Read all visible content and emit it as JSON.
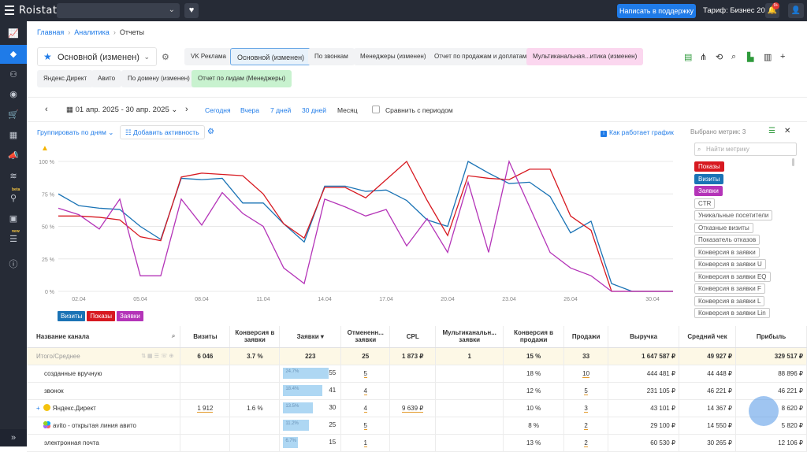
{
  "topbar": {
    "logo": "Roistat",
    "support_button": "Написать в поддержку",
    "tariff": "Тариф: Бизнес 20",
    "notification_count": "9+"
  },
  "sidebar": {
    "beta_tag": "beta",
    "new_tag": "new",
    "icons": [
      "chart-line-icon",
      "layers-icon",
      "sitemap-icon",
      "user-circle-icon",
      "cart-icon",
      "calendar-icon",
      "megaphone-icon",
      "stack-icon",
      "analytics-beta-icon",
      "inbox-icon",
      "list-new-icon",
      "info-icon"
    ],
    "collapse_icon": "double-chevron-right-icon"
  },
  "breadcrumb": {
    "home": "Главная",
    "analytics": "Аналитика",
    "current": "Отчеты"
  },
  "report": {
    "title": "Основной (изменен)",
    "tabs": [
      {
        "label": "VK Реклама",
        "style": "plain"
      },
      {
        "label": "Основной (изменен)",
        "style": "selected"
      },
      {
        "label": "По звонкам",
        "style": "plain"
      },
      {
        "label": "Менеджеры (изменен)",
        "style": "plain"
      },
      {
        "label": "Отчет по продажам и доплатам",
        "style": "plain"
      },
      {
        "label": "Мультиканальная...итика (изменен)",
        "style": "pink"
      }
    ],
    "tabs_row2": [
      {
        "label": "Яндекс.Директ",
        "style": "plain"
      },
      {
        "label": "Авито",
        "style": "plain"
      },
      {
        "label": "По домену (изменен)",
        "style": "plain"
      },
      {
        "label": "Отчет по лидам (Менеджеры)",
        "style": "green"
      }
    ]
  },
  "datebar": {
    "range": "01 апр. 2025 - 30 апр. 2025",
    "today": "Сегодня",
    "yesterday": "Вчера",
    "days7": "7 дней",
    "days30": "30 дней",
    "month": "Месяц",
    "compare": "Сравнить с периодом"
  },
  "chart_controls": {
    "group_by": "Группировать по дням",
    "add_activity": "Добавить активность",
    "how_it_works": "Как работает график"
  },
  "metrics_panel": {
    "selected": "Выбрано метрик: 3",
    "search_placeholder": "Найти метрику",
    "items": [
      {
        "label": "Показы",
        "on": true,
        "color": "#d71920"
      },
      {
        "label": "Визиты",
        "on": true,
        "color": "#1a73b5"
      },
      {
        "label": "Заявки",
        "on": true,
        "color": "#b434b8"
      },
      {
        "label": "CTR",
        "on": false
      },
      {
        "label": "Уникальные посетители",
        "on": false
      },
      {
        "label": "Отказные визиты",
        "on": false
      },
      {
        "label": "Показатель отказов",
        "on": false
      },
      {
        "label": "Конверсия в заявки",
        "on": false
      },
      {
        "label": "Конверсия в заявки U",
        "on": false
      },
      {
        "label": "Конверсия в заявки EQ",
        "on": false
      },
      {
        "label": "Конверсия в заявки F",
        "on": false
      },
      {
        "label": "Конверсия в заявки L",
        "on": false
      },
      {
        "label": "Конверсия в заявки Lin",
        "on": false
      }
    ]
  },
  "chart_data": {
    "type": "line",
    "x": [
      "01.04",
      "02.04",
      "03.04",
      "04.04",
      "05.04",
      "06.04",
      "07.04",
      "08.04",
      "09.04",
      "10.04",
      "11.04",
      "12.04",
      "13.04",
      "14.04",
      "15.04",
      "16.04",
      "17.04",
      "18.04",
      "19.04",
      "20.04",
      "21.04",
      "22.04",
      "23.04",
      "24.04",
      "25.04",
      "26.04",
      "27.04",
      "28.04",
      "29.04",
      "30.04",
      "01.05"
    ],
    "xticks": [
      "02.04",
      "05.04",
      "08.04",
      "11.04",
      "14.04",
      "17.04",
      "20.04",
      "23.04",
      "26.04",
      "30.04"
    ],
    "yticks": [
      "0 %",
      "25 %",
      "50 %",
      "75 %",
      "100 %"
    ],
    "ylim": [
      0,
      100
    ],
    "grid": true,
    "series": [
      {
        "name": "Визиты",
        "color": "#1a73b5",
        "values": [
          75,
          66,
          64,
          63,
          50,
          40,
          87,
          86,
          87,
          68,
          68,
          52,
          38,
          81,
          81,
          77,
          78,
          70,
          55,
          50,
          100,
          91,
          83,
          84,
          73,
          45,
          54,
          6,
          0,
          0,
          0
        ]
      },
      {
        "name": "Показы",
        "color": "#d71920",
        "values": [
          58,
          58,
          57,
          55,
          42,
          39,
          88,
          91,
          90,
          89,
          75,
          52,
          41,
          80,
          80,
          72,
          86,
          100,
          70,
          43,
          89,
          87,
          86,
          94,
          94,
          58,
          47,
          0,
          0,
          0,
          0
        ]
      },
      {
        "name": "Заявки",
        "color": "#b434b8",
        "values": [
          64,
          59,
          48,
          71,
          12,
          12,
          71,
          51,
          76,
          60,
          50,
          18,
          6,
          71,
          65,
          58,
          63,
          35,
          56,
          30,
          84,
          30,
          100,
          65,
          30,
          18,
          12,
          0,
          0,
          0,
          0
        ]
      }
    ]
  },
  "legend": {
    "visits": "Визиты",
    "shows": "Показы",
    "leads": "Заявки"
  },
  "table": {
    "headers": [
      "Название канала",
      "Визиты",
      "Конверсия в заявки",
      "Заявки ▾",
      "Отмененн... заявки",
      "CPL",
      "Мультиканальн... заявки",
      "Конверсия в продажи",
      "Продажи",
      "Выручка",
      "Средний чек",
      "Прибыль"
    ],
    "total": {
      "name": "Итого/Среднее",
      "visits": "6 046",
      "conv": "3.7 %",
      "leads": "223",
      "cancelled": "25",
      "cpl": "1 873 ₽",
      "multi": "1",
      "conv_sales": "15 %",
      "sales": "33",
      "revenue": "1 647 587 ₽",
      "avg": "49 927 ₽",
      "profit": "329 517 ₽"
    },
    "rows": [
      {
        "name": "созданные вручную",
        "visits": "",
        "conv": "",
        "lead_pct": "24.7%",
        "lead_fill": 0.84,
        "leads": "55",
        "cancelled": "5",
        "cpl": "",
        "multi": "",
        "conv_sales": "18 %",
        "sales": "10",
        "revenue": "444 481 ₽",
        "avg": "44 448 ₽",
        "profit": "88 896 ₽"
      },
      {
        "name": "звонок",
        "visits": "",
        "conv": "",
        "lead_pct": "18.4%",
        "lead_fill": 0.72,
        "leads": "41",
        "cancelled": "4",
        "cpl": "",
        "multi": "",
        "conv_sales": "12 %",
        "sales": "5",
        "revenue": "231 105 ₽",
        "avg": "46 221 ₽",
        "profit": "46 221 ₽"
      },
      {
        "name": "Яндекс.Директ",
        "visits": "1 912",
        "conv": "1.6 %",
        "lead_pct": "13.5%",
        "lead_fill": 0.54,
        "leads": "30",
        "cancelled": "4",
        "cpl": "9 639 ₽",
        "multi": "",
        "conv_sales": "10 %",
        "sales": "3",
        "revenue": "43 101 ₽",
        "avg": "14 367 ₽",
        "profit": "8 620 ₽"
      },
      {
        "name": "avito - открытая линия авито",
        "visits": "",
        "conv": "",
        "lead_pct": "11.2%",
        "lead_fill": 0.48,
        "leads": "25",
        "cancelled": "5",
        "cpl": "",
        "multi": "",
        "conv_sales": "8 %",
        "sales": "2",
        "revenue": "29 100 ₽",
        "avg": "14 550 ₽",
        "profit": "5 820 ₽"
      },
      {
        "name": "электронная почта",
        "visits": "",
        "conv": "",
        "lead_pct": "6.7%",
        "lead_fill": 0.27,
        "leads": "15",
        "cancelled": "1",
        "cpl": "",
        "multi": "",
        "conv_sales": "13 %",
        "sales": "2",
        "revenue": "60 530 ₽",
        "avg": "30 265 ₽",
        "profit": "12 106 ₽"
      }
    ]
  }
}
